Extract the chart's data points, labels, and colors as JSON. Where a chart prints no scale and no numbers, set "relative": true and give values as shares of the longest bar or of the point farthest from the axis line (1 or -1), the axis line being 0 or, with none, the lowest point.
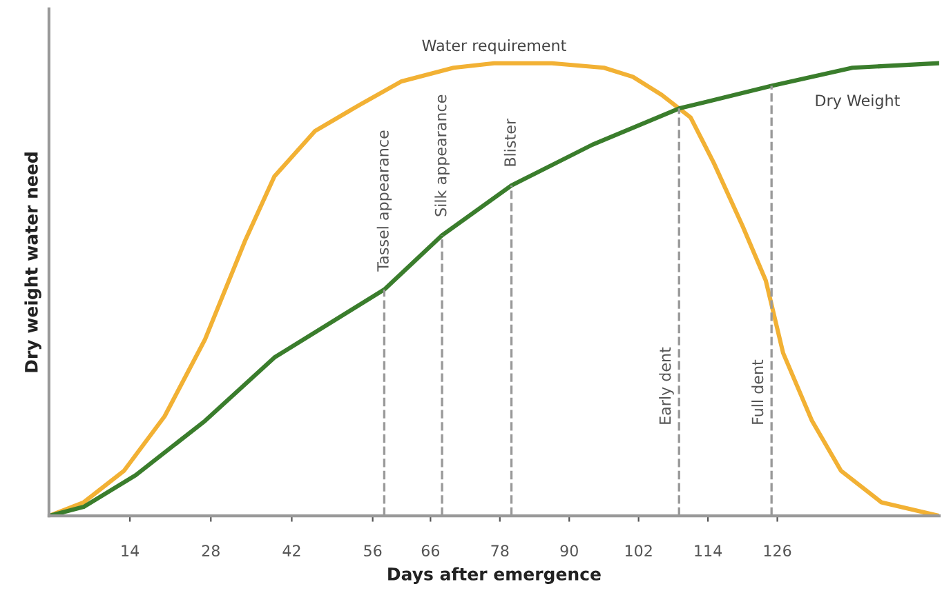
{
  "chart_data": {
    "type": "line",
    "relative": true,
    "xlabel": "Days after emergence",
    "ylabel": "Dry weight water need",
    "xlim": [
      0,
      154
    ],
    "xticks": [
      14,
      28,
      42,
      56,
      66,
      78,
      90,
      102,
      114,
      126
    ],
    "series": [
      {
        "name": "Water requirement",
        "color": "#f2b134",
        "x": [
          0,
          6,
          13,
          20,
          27,
          34,
          39,
          46,
          54,
          61,
          70,
          77,
          87,
          96,
          101,
          106,
          111,
          115,
          120,
          124,
          127,
          132,
          137,
          144,
          154
        ],
        "values": [
          0,
          0.03,
          0.1,
          0.22,
          0.39,
          0.61,
          0.75,
          0.85,
          0.91,
          0.96,
          0.99,
          1.0,
          1.0,
          0.99,
          0.97,
          0.93,
          0.88,
          0.78,
          0.64,
          0.52,
          0.36,
          0.21,
          0.1,
          0.03,
          0
        ]
      },
      {
        "name": "Dry Weight",
        "color": "#3a7d2c",
        "x": [
          0,
          6,
          15,
          27,
          39,
          58,
          68,
          80,
          94,
          109,
          125,
          139,
          154
        ],
        "values": [
          0,
          0.02,
          0.09,
          0.21,
          0.35,
          0.5,
          0.62,
          0.73,
          0.82,
          0.9,
          0.95,
          0.99,
          1.0
        ]
      }
    ],
    "ref_lines": [
      {
        "axis": "x",
        "value": 58,
        "label": "Tassel appearance",
        "color": "#999999",
        "line_style": "dashed"
      },
      {
        "axis": "x",
        "value": 68,
        "label": "Silk appearance",
        "color": "#999999",
        "line_style": "dashed"
      },
      {
        "axis": "x",
        "value": 80,
        "label": "Blister",
        "color": "#999999",
        "line_style": "dashed"
      },
      {
        "axis": "x",
        "value": 109,
        "label": "Early dent",
        "color": "#999999",
        "line_style": "dashed"
      },
      {
        "axis": "x",
        "value": 125,
        "label": "Full dent",
        "color": "#999999",
        "line_style": "dashed"
      }
    ],
    "grid": false,
    "legend": false,
    "marker": "none",
    "line_style": "solid"
  }
}
